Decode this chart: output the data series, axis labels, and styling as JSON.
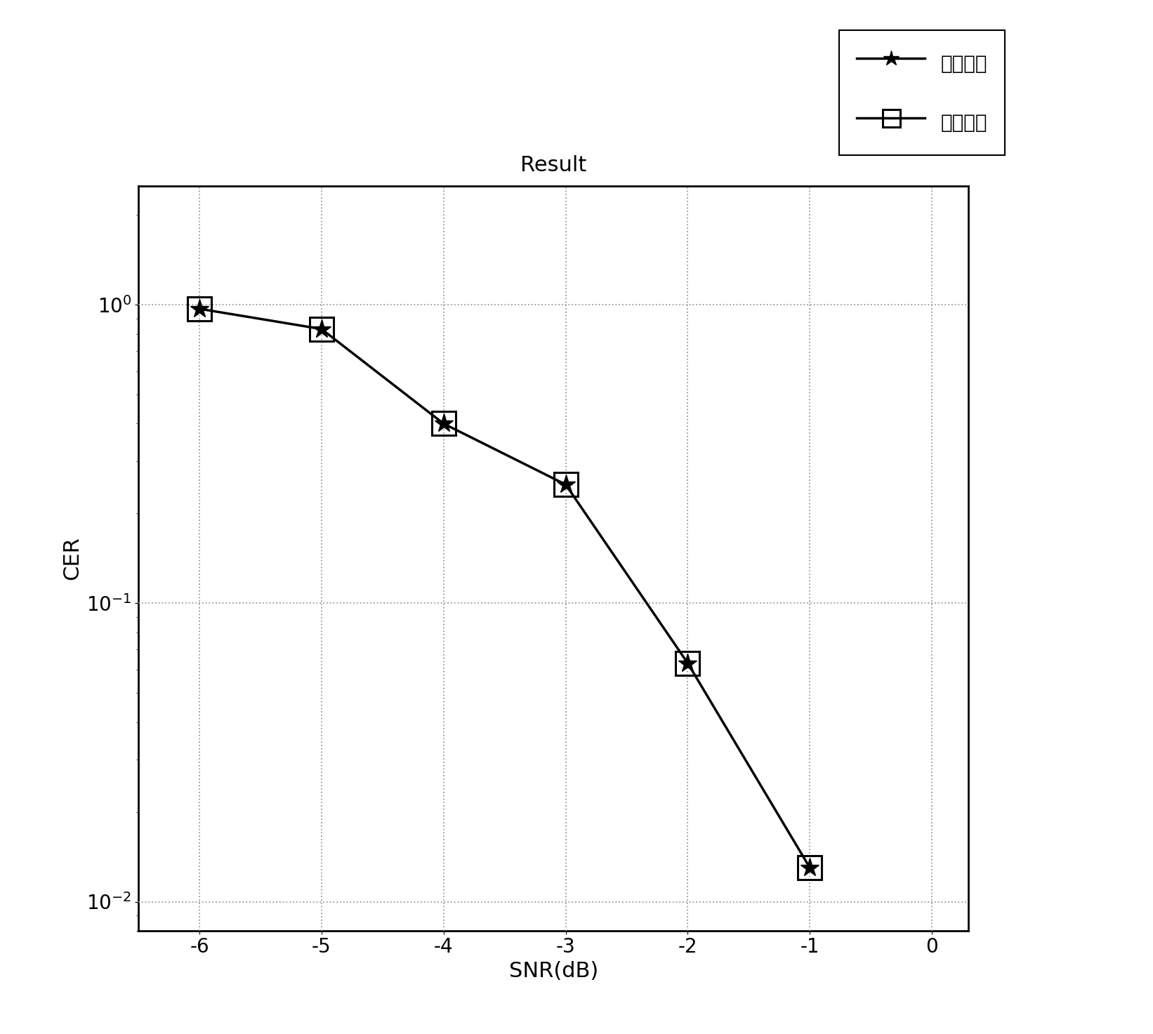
{
  "title": "Result",
  "xlabel": "SNR(dB)",
  "ylabel": "CER",
  "x_data": [
    -6,
    -5,
    -4,
    -3,
    -2,
    -1
  ],
  "y_data": [
    0.97,
    0.83,
    0.4,
    0.25,
    0.063,
    0.013
  ],
  "xlim": [
    -6.5,
    0.3
  ],
  "ylim_log": [
    0.008,
    2.5
  ],
  "xticks": [
    -6,
    -5,
    -4,
    -3,
    -2,
    -1,
    0
  ],
  "line_color": "#000000",
  "marker_star_color": "#000000",
  "marker_square_color": "#000000",
  "legend_label_star": "漏报概率",
  "legend_label_square": "全漏概率",
  "grid_color": "#999999",
  "background_color": "#ffffff",
  "title_fontsize": 22,
  "label_fontsize": 22,
  "tick_fontsize": 20,
  "legend_fontsize": 20
}
